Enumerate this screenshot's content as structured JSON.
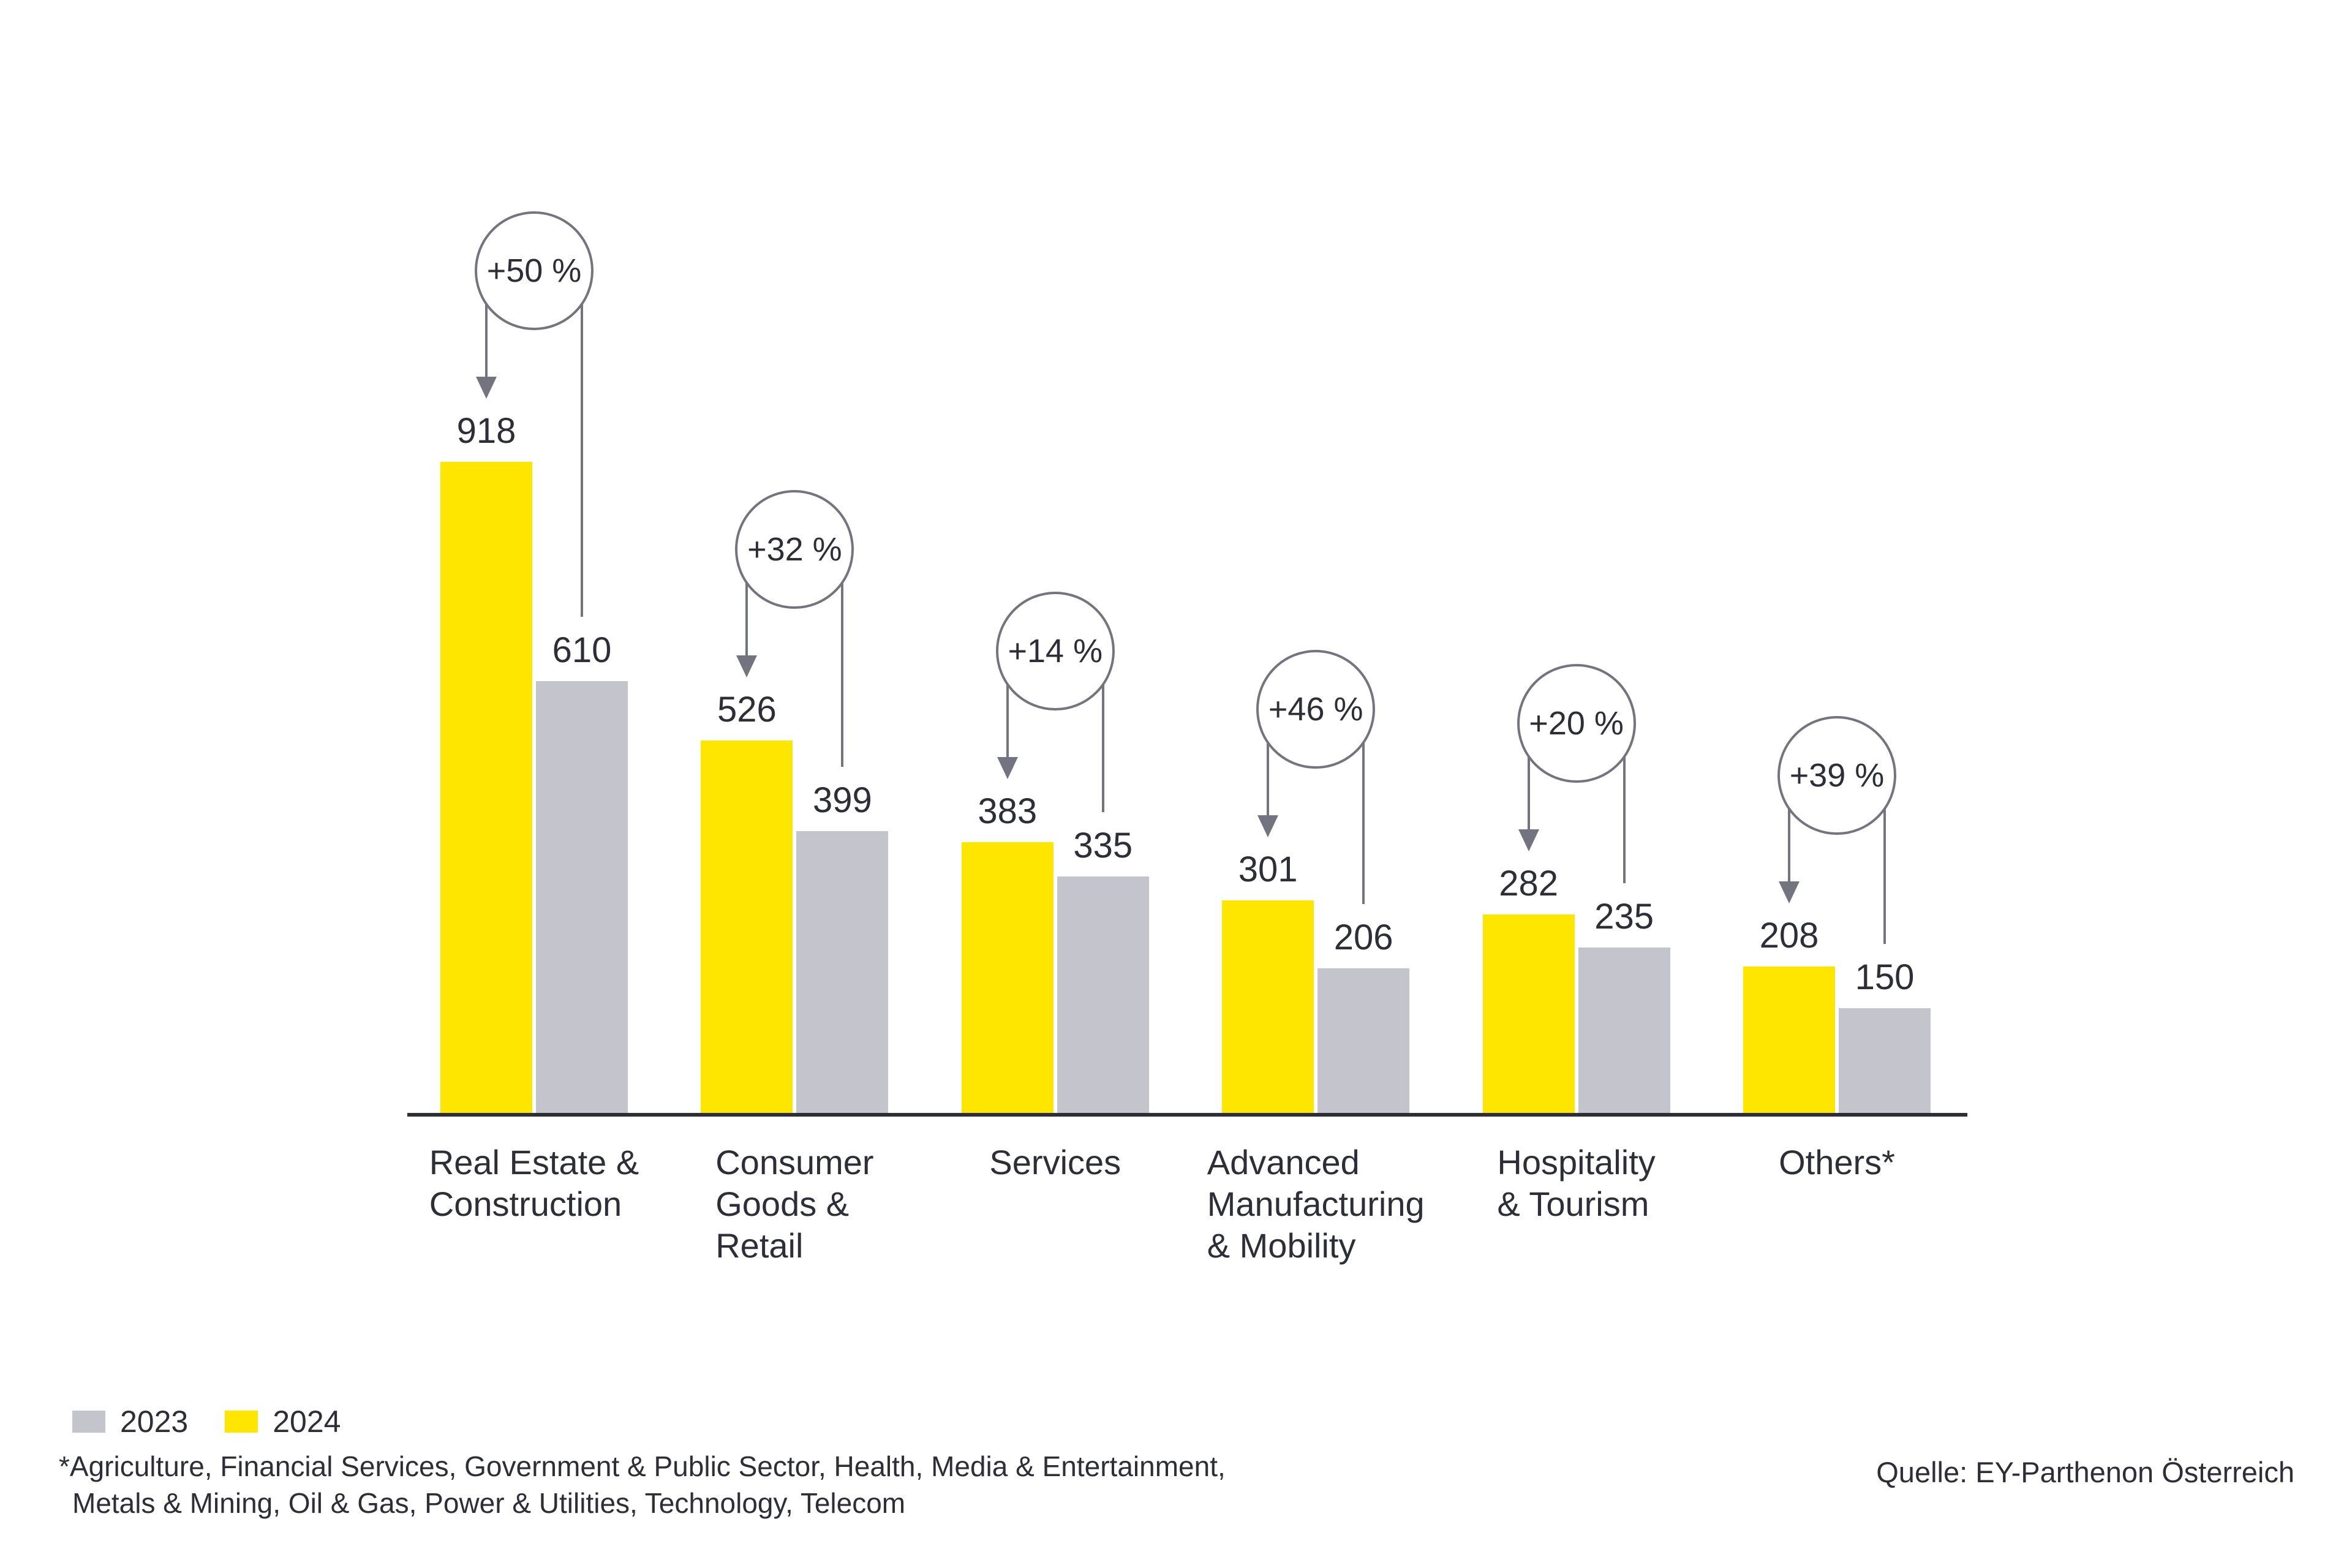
{
  "chart_data": {
    "type": "bar",
    "title": "",
    "categories": [
      "Real Estate & Construction",
      "Consumer Goods & Retail",
      "Services",
      "Advanced Manufacturing & Mobility",
      "Hospitality & Tourism",
      "Others*"
    ],
    "series": [
      {
        "name": "2023",
        "color": "#c4c4cd",
        "values": [
          610,
          399,
          335,
          206,
          235,
          150
        ]
      },
      {
        "name": "2024",
        "color": "#ffe600",
        "values": [
          918,
          526,
          383,
          301,
          282,
          208
        ]
      }
    ],
    "growth_percent": [
      "+50 %",
      "+32 %",
      "+14 %",
      "+46 %",
      "+20 %",
      "+39 %"
    ],
    "ylim": [
      0,
      918
    ],
    "grid": false,
    "legend_position": "bottom-left",
    "groups": [
      {
        "label": "Real Estate & Construction",
        "label_display": "Real Estate &\nConstruction",
        "value_2024": 918,
        "value_2023": 610,
        "growth": "+50 %"
      },
      {
        "label": "Consumer Goods & Retail",
        "label_display": "Consumer\nGoods &\nRetail",
        "value_2024": 526,
        "value_2023": 399,
        "growth": "+32 %"
      },
      {
        "label": "Services",
        "label_display": "Services",
        "value_2024": 383,
        "value_2023": 335,
        "growth": "+14 %"
      },
      {
        "label": "Advanced Manufacturing & Mobility",
        "label_display": "Advanced\nManufacturing\n& Mobility",
        "value_2024": 301,
        "value_2023": 206,
        "growth": "+46 %"
      },
      {
        "label": "Hospitality & Tourism",
        "label_display": "Hospitality\n& Tourism",
        "value_2024": 282,
        "value_2023": 235,
        "growth": "+20 %"
      },
      {
        "label": "Others*",
        "label_display": "Others*",
        "value_2024": 208,
        "value_2023": 150,
        "growth": "+39 %"
      }
    ]
  },
  "legend": {
    "items": [
      {
        "label": "2023",
        "color": "#c4c4cd"
      },
      {
        "label": "2024",
        "color": "#ffe600"
      }
    ]
  },
  "footnote": {
    "line1": "*Agriculture, Financial Services, Government & Public Sector, Health, Media & Entertainment,",
    "line2": "Metals & Mining, Oil & Gas, Power & Utilities, Technology, Telecom"
  },
  "source": "Quelle: EY-Parthenon Österreich",
  "colors": {
    "text": "#2e2e38",
    "connector": "#747480",
    "bar_2024": "#ffe600",
    "bar_2023": "#c4c4cd",
    "axis": "#2e2e38"
  }
}
